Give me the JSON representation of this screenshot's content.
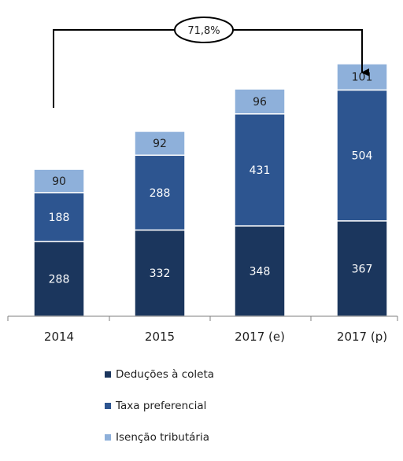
{
  "colors": {
    "deducoes": "#1b365d",
    "taxa": "#2d5590",
    "isencao": "#8eb0da",
    "axis": "#7f7f7f",
    "label_dark": "#ffffff",
    "label_light": "#1f1f1f"
  },
  "chart_data": {
    "type": "bar",
    "stacked": true,
    "categories": [
      "2014",
      "2015",
      "2017 (e)",
      "2017 (p)"
    ],
    "series": [
      {
        "name": "Deduções à coleta",
        "values": [
          288,
          332,
          348,
          367
        ]
      },
      {
        "name": "Taxa preferencial",
        "values": [
          188,
          288,
          431,
          504
        ]
      },
      {
        "name": "Isenção tributária",
        "values": [
          90,
          92,
          96,
          101
        ]
      }
    ],
    "annotation": {
      "text": "71,8%",
      "from_category": "2014",
      "to_category": "2017 (p)"
    },
    "legend_position": "bottom",
    "grid": false
  }
}
